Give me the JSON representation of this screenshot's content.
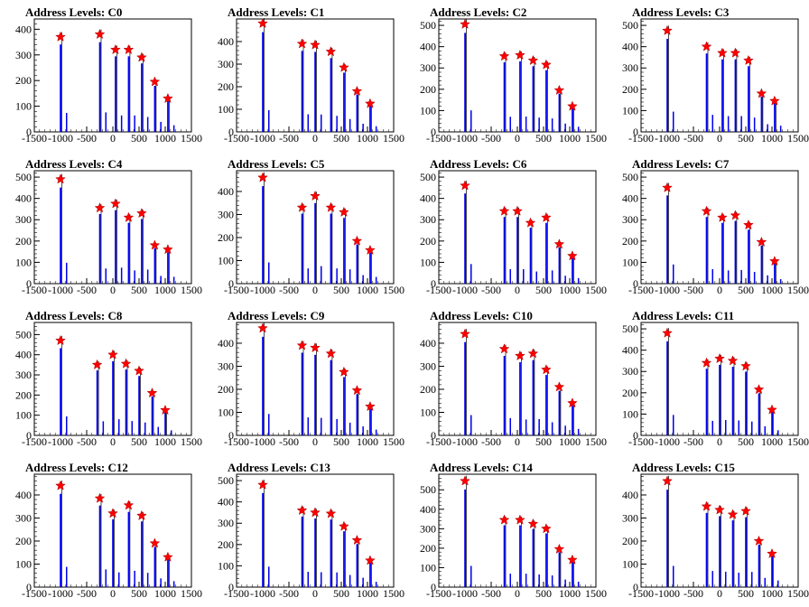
{
  "chart_data": [
    {
      "type": "bar",
      "title": "Address Levels: C0",
      "xlim": [
        -1500,
        1500
      ],
      "ylim": [
        0,
        440
      ],
      "yticks": [
        0,
        100,
        200,
        300,
        400
      ],
      "xticks": [
        -1500,
        -1000,
        -500,
        0,
        500,
        1000,
        1500
      ],
      "peaks": [
        {
          "x": -1000,
          "y": 370
        },
        {
          "x": -250,
          "y": 380
        },
        {
          "x": 50,
          "y": 320
        },
        {
          "x": 300,
          "y": 320
        },
        {
          "x": 550,
          "y": 290
        },
        {
          "x": 800,
          "y": 195
        },
        {
          "x": 1050,
          "y": 130
        }
      ]
    },
    {
      "type": "bar",
      "title": "Address Levels: C1",
      "xlim": [
        -1500,
        1500
      ],
      "ylim": [
        0,
        500
      ],
      "yticks": [
        0,
        100,
        200,
        300,
        400
      ],
      "xticks": [
        -1500,
        -1000,
        -500,
        0,
        500,
        1000,
        1500
      ],
      "peaks": [
        {
          "x": -1000,
          "y": 480
        },
        {
          "x": -250,
          "y": 390
        },
        {
          "x": 0,
          "y": 385
        },
        {
          "x": 300,
          "y": 355
        },
        {
          "x": 550,
          "y": 285
        },
        {
          "x": 800,
          "y": 180
        },
        {
          "x": 1050,
          "y": 125
        }
      ]
    },
    {
      "type": "bar",
      "title": "Address Levels: C2",
      "xlim": [
        -1500,
        1500
      ],
      "ylim": [
        0,
        530
      ],
      "yticks": [
        0,
        100,
        200,
        300,
        400,
        500
      ],
      "xticks": [
        -1500,
        -1000,
        -500,
        0,
        500,
        1000,
        1500
      ],
      "peaks": [
        {
          "x": -1000,
          "y": 505
        },
        {
          "x": -250,
          "y": 355
        },
        {
          "x": 50,
          "y": 360
        },
        {
          "x": 300,
          "y": 335
        },
        {
          "x": 550,
          "y": 315
        },
        {
          "x": 800,
          "y": 195
        },
        {
          "x": 1050,
          "y": 120
        }
      ]
    },
    {
      "type": "bar",
      "title": "Address Levels: C3",
      "xlim": [
        -1500,
        1500
      ],
      "ylim": [
        0,
        530
      ],
      "yticks": [
        0,
        100,
        200,
        300,
        400,
        500
      ],
      "xticks": [
        -1500,
        -1000,
        -500,
        0,
        500,
        1000,
        1500
      ],
      "peaks": [
        {
          "x": -1000,
          "y": 475
        },
        {
          "x": -250,
          "y": 400
        },
        {
          "x": 50,
          "y": 370
        },
        {
          "x": 300,
          "y": 370
        },
        {
          "x": 550,
          "y": 335
        },
        {
          "x": 800,
          "y": 180
        },
        {
          "x": 1050,
          "y": 145
        }
      ]
    },
    {
      "type": "bar",
      "title": "Address Levels: C4",
      "xlim": [
        -1500,
        1500
      ],
      "ylim": [
        0,
        530
      ],
      "yticks": [
        0,
        100,
        200,
        300,
        400,
        500
      ],
      "xticks": [
        -1500,
        -1000,
        -500,
        0,
        500,
        1000,
        1500
      ],
      "peaks": [
        {
          "x": -1000,
          "y": 490
        },
        {
          "x": -250,
          "y": 355
        },
        {
          "x": 50,
          "y": 375
        },
        {
          "x": 300,
          "y": 310
        },
        {
          "x": 550,
          "y": 330
        },
        {
          "x": 800,
          "y": 180
        },
        {
          "x": 1050,
          "y": 160
        }
      ]
    },
    {
      "type": "bar",
      "title": "Address Levels: C5",
      "xlim": [
        -1500,
        1500
      ],
      "ylim": [
        0,
        490
      ],
      "yticks": [
        0,
        100,
        200,
        300,
        400
      ],
      "xticks": [
        -1500,
        -1000,
        -500,
        0,
        500,
        1000,
        1500
      ],
      "peaks": [
        {
          "x": -1000,
          "y": 460
        },
        {
          "x": -250,
          "y": 330
        },
        {
          "x": 0,
          "y": 380
        },
        {
          "x": 300,
          "y": 330
        },
        {
          "x": 550,
          "y": 310
        },
        {
          "x": 800,
          "y": 185
        },
        {
          "x": 1050,
          "y": 145
        }
      ]
    },
    {
      "type": "bar",
      "title": "Address Levels: C6",
      "xlim": [
        -1500,
        1500
      ],
      "ylim": [
        0,
        530
      ],
      "yticks": [
        0,
        100,
        200,
        300,
        400,
        500
      ],
      "xticks": [
        -1500,
        -1000,
        -500,
        0,
        500,
        1000,
        1500
      ],
      "peaks": [
        {
          "x": -1000,
          "y": 460
        },
        {
          "x": -250,
          "y": 340
        },
        {
          "x": 0,
          "y": 340
        },
        {
          "x": 250,
          "y": 285
        },
        {
          "x": 550,
          "y": 310
        },
        {
          "x": 800,
          "y": 185
        },
        {
          "x": 1050,
          "y": 130
        }
      ]
    },
    {
      "type": "bar",
      "title": "Address Levels: C7",
      "xlim": [
        -1500,
        1500
      ],
      "ylim": [
        0,
        530
      ],
      "yticks": [
        0,
        100,
        200,
        300,
        400,
        500
      ],
      "xticks": [
        -1500,
        -1000,
        -500,
        0,
        500,
        1000,
        1500
      ],
      "peaks": [
        {
          "x": -1000,
          "y": 450
        },
        {
          "x": -250,
          "y": 340
        },
        {
          "x": 50,
          "y": 310
        },
        {
          "x": 300,
          "y": 320
        },
        {
          "x": 550,
          "y": 275
        },
        {
          "x": 800,
          "y": 195
        },
        {
          "x": 1050,
          "y": 105
        }
      ]
    },
    {
      "type": "bar",
      "title": "Address Levels: C8",
      "xlim": [
        -1500,
        1500
      ],
      "ylim": [
        0,
        560
      ],
      "yticks": [
        0,
        100,
        200,
        300,
        400,
        500
      ],
      "xticks": [
        -1500,
        -1000,
        -500,
        0,
        500,
        1000,
        1500
      ],
      "peaks": [
        {
          "x": -1000,
          "y": 470
        },
        {
          "x": -300,
          "y": 350
        },
        {
          "x": 0,
          "y": 400
        },
        {
          "x": 250,
          "y": 355
        },
        {
          "x": 500,
          "y": 320
        },
        {
          "x": 750,
          "y": 210
        },
        {
          "x": 1000,
          "y": 125
        }
      ]
    },
    {
      "type": "bar",
      "title": "Address Levels: C9",
      "xlim": [
        -1500,
        1500
      ],
      "ylim": [
        0,
        490
      ],
      "yticks": [
        0,
        100,
        200,
        300,
        400
      ],
      "xticks": [
        -1500,
        -1000,
        -500,
        0,
        500,
        1000,
        1500
      ],
      "peaks": [
        {
          "x": -1000,
          "y": 465
        },
        {
          "x": -250,
          "y": 390
        },
        {
          "x": 0,
          "y": 380
        },
        {
          "x": 300,
          "y": 355
        },
        {
          "x": 550,
          "y": 275
        },
        {
          "x": 800,
          "y": 195
        },
        {
          "x": 1050,
          "y": 125
        }
      ]
    },
    {
      "type": "bar",
      "title": "Address Levels: C10",
      "xlim": [
        -1500,
        1500
      ],
      "ylim": [
        0,
        490
      ],
      "yticks": [
        0,
        100,
        200,
        300,
        400
      ],
      "xticks": [
        -1500,
        -1000,
        -500,
        0,
        500,
        1000,
        1500
      ],
      "peaks": [
        {
          "x": -1000,
          "y": 440
        },
        {
          "x": -250,
          "y": 375
        },
        {
          "x": 50,
          "y": 345
        },
        {
          "x": 300,
          "y": 355
        },
        {
          "x": 550,
          "y": 285
        },
        {
          "x": 800,
          "y": 210
        },
        {
          "x": 1050,
          "y": 140
        }
      ]
    },
    {
      "type": "bar",
      "title": "Address Levels: C11",
      "xlim": [
        -1500,
        1500
      ],
      "ylim": [
        0,
        530
      ],
      "yticks": [
        0,
        100,
        200,
        300,
        400,
        500
      ],
      "xticks": [
        -1500,
        -1000,
        -500,
        0,
        500,
        1000,
        1500
      ],
      "peaks": [
        {
          "x": -1000,
          "y": 480
        },
        {
          "x": -250,
          "y": 340
        },
        {
          "x": 0,
          "y": 360
        },
        {
          "x": 250,
          "y": 350
        },
        {
          "x": 500,
          "y": 325
        },
        {
          "x": 750,
          "y": 215
        },
        {
          "x": 1000,
          "y": 120
        }
      ]
    },
    {
      "type": "bar",
      "title": "Address Levels: C12",
      "xlim": [
        -1500,
        1500
      ],
      "ylim": [
        0,
        490
      ],
      "yticks": [
        0,
        100,
        200,
        300,
        400
      ],
      "xticks": [
        -1500,
        -1000,
        -500,
        0,
        500,
        1000,
        1500
      ],
      "peaks": [
        {
          "x": -1000,
          "y": 440
        },
        {
          "x": -250,
          "y": 385
        },
        {
          "x": 0,
          "y": 320
        },
        {
          "x": 300,
          "y": 355
        },
        {
          "x": 550,
          "y": 310
        },
        {
          "x": 800,
          "y": 190
        },
        {
          "x": 1050,
          "y": 130
        }
      ]
    },
    {
      "type": "bar",
      "title": "Address Levels: C13",
      "xlim": [
        -1500,
        1500
      ],
      "ylim": [
        0,
        530
      ],
      "yticks": [
        0,
        100,
        200,
        300,
        400,
        500
      ],
      "xticks": [
        -1500,
        -1000,
        -500,
        0,
        500,
        1000,
        1500
      ],
      "peaks": [
        {
          "x": -1000,
          "y": 480
        },
        {
          "x": -250,
          "y": 360
        },
        {
          "x": 0,
          "y": 350
        },
        {
          "x": 300,
          "y": 345
        },
        {
          "x": 550,
          "y": 285
        },
        {
          "x": 800,
          "y": 220
        },
        {
          "x": 1050,
          "y": 125
        }
      ]
    },
    {
      "type": "bar",
      "title": "Address Levels: C14",
      "xlim": [
        -1500,
        1500
      ],
      "ylim": [
        0,
        580
      ],
      "yticks": [
        0,
        100,
        200,
        300,
        400,
        500
      ],
      "xticks": [
        -1500,
        -1000,
        -500,
        0,
        500,
        1000,
        1500
      ],
      "peaks": [
        {
          "x": -1000,
          "y": 545
        },
        {
          "x": -250,
          "y": 345
        },
        {
          "x": 50,
          "y": 345
        },
        {
          "x": 300,
          "y": 325
        },
        {
          "x": 550,
          "y": 300
        },
        {
          "x": 800,
          "y": 195
        },
        {
          "x": 1050,
          "y": 140
        }
      ]
    },
    {
      "type": "bar",
      "title": "Address Levels: C15",
      "xlim": [
        -1500,
        1500
      ],
      "ylim": [
        0,
        490
      ],
      "yticks": [
        0,
        100,
        200,
        300,
        400
      ],
      "xticks": [
        -1500,
        -1000,
        -500,
        0,
        500,
        1000,
        1500
      ],
      "peaks": [
        {
          "x": -1000,
          "y": 460
        },
        {
          "x": -250,
          "y": 350
        },
        {
          "x": 0,
          "y": 335
        },
        {
          "x": 250,
          "y": 315
        },
        {
          "x": 500,
          "y": 330
        },
        {
          "x": 750,
          "y": 200
        },
        {
          "x": 1000,
          "y": 145
        }
      ]
    }
  ]
}
